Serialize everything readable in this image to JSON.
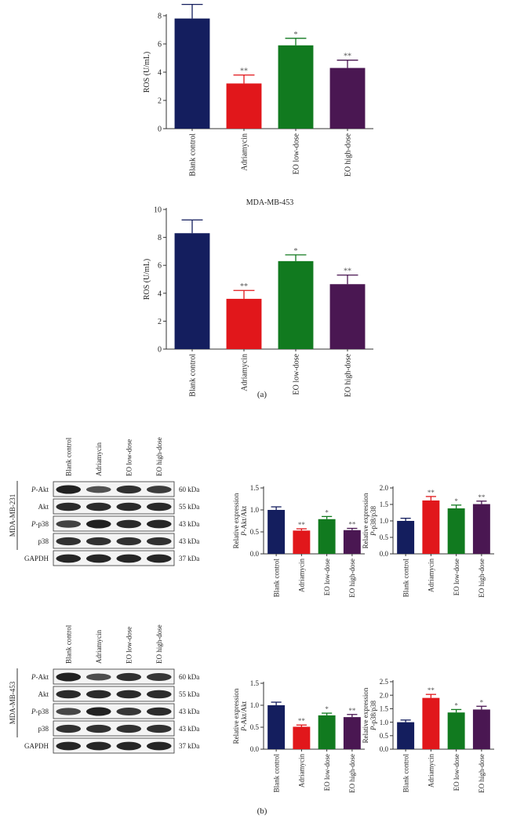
{
  "colors": {
    "blank": "#141e5e",
    "adria": "#e1171b",
    "low": "#117a1f",
    "high": "#4a1752",
    "axis": "#333333",
    "band": "#151515"
  },
  "labels": {
    "panel_a": "(a)",
    "panel_b": "(b)"
  },
  "chart_data": [
    {
      "id": "ros-top",
      "type": "bar",
      "title": "",
      "ylabel": "ROS (U/mL)",
      "ylim": [
        0,
        8
      ],
      "yticks": [
        "0",
        "2",
        "4",
        "6",
        "8"
      ],
      "categories": [
        "Blank control",
        "Adriamycin",
        "EO low-dose",
        "EO high-dose"
      ],
      "values": [
        7.8,
        3.2,
        5.9,
        4.3
      ],
      "errors": [
        1.0,
        0.6,
        0.5,
        0.55
      ],
      "significance": [
        "",
        "**",
        "*",
        "**"
      ]
    },
    {
      "id": "ros-mda453",
      "type": "bar",
      "title": "MDA-MB-453",
      "ylabel": "ROS (U/mL)",
      "ylim": [
        0,
        10
      ],
      "yticks": [
        "0",
        "2",
        "4",
        "6",
        "8",
        "10"
      ],
      "categories": [
        "Blank control",
        "Adriamycin",
        "EO low-dose",
        "EO high-dose"
      ],
      "values": [
        8.3,
        3.6,
        6.3,
        4.65
      ],
      "errors": [
        0.95,
        0.6,
        0.45,
        0.65
      ],
      "significance": [
        "",
        "**",
        "*",
        "**"
      ]
    },
    {
      "id": "akt-231",
      "type": "bar",
      "ylabel_lines": [
        "Relative expression",
        "P-Akt/Akt"
      ],
      "ylim": [
        0,
        1.5
      ],
      "yticks": [
        "0.0",
        "0.5",
        "1.0",
        "1.5"
      ],
      "categories": [
        "Blank control",
        "Adriamycin",
        "EO low-dose",
        "EO high-dose"
      ],
      "values": [
        1.0,
        0.53,
        0.79,
        0.54
      ],
      "errors": [
        0.07,
        0.04,
        0.06,
        0.04
      ],
      "significance": [
        "",
        "**",
        "*",
        "**"
      ]
    },
    {
      "id": "p38-231",
      "type": "bar",
      "ylabel_lines": [
        "Relative expression",
        "P-p38/p38"
      ],
      "ylim": [
        0,
        2.0
      ],
      "yticks": [
        "0.0",
        "0.5",
        "1.0",
        "1.5",
        "2.0"
      ],
      "categories": [
        "Blank control",
        "Adriamycin",
        "EO low-dose",
        "EO high-dose"
      ],
      "values": [
        1.0,
        1.62,
        1.38,
        1.51
      ],
      "errors": [
        0.08,
        0.12,
        0.1,
        0.09
      ],
      "significance": [
        "",
        "**",
        "*",
        "**"
      ]
    },
    {
      "id": "akt-453",
      "type": "bar",
      "ylabel_lines": [
        "Relative expression",
        "P-Akt/Akt"
      ],
      "ylim": [
        0,
        1.5
      ],
      "yticks": [
        "0.0",
        "0.5",
        "1.0",
        "1.5"
      ],
      "categories": [
        "Blank control",
        "Adriamycin",
        "EO low-dose",
        "EO high-dose"
      ],
      "values": [
        1.0,
        0.51,
        0.77,
        0.73
      ],
      "errors": [
        0.07,
        0.04,
        0.05,
        0.06
      ],
      "significance": [
        "",
        "**",
        "*",
        "**"
      ]
    },
    {
      "id": "p38-453",
      "type": "bar",
      "ylabel_lines": [
        "Relative expression",
        "P-p38/p38"
      ],
      "ylim": [
        0,
        2.5
      ],
      "yticks": [
        "0.0",
        "0.5",
        "1.0",
        "1.5",
        "2.0",
        "2.5"
      ],
      "categories": [
        "Blank control",
        "Adriamycin",
        "EO low-dose",
        "EO high-dose"
      ],
      "values": [
        1.0,
        1.9,
        1.36,
        1.47
      ],
      "errors": [
        0.08,
        0.13,
        0.11,
        0.12
      ],
      "significance": [
        "",
        "**",
        "*",
        "*"
      ]
    }
  ],
  "blots": [
    {
      "id": "blot-231",
      "cell_line": "MDA-MB-231",
      "lanes": [
        "Blank control",
        "Adriamycin",
        "EO low-dose",
        "EO high-dose"
      ],
      "rows": [
        {
          "protein": "P-Akt",
          "kda": "60 kDa",
          "intensity": [
            1.0,
            0.55,
            0.85,
            0.75
          ]
        },
        {
          "protein": "Akt",
          "kda": "55 kDa",
          "intensity": [
            0.9,
            0.9,
            0.9,
            0.9
          ]
        },
        {
          "protein": "P-p38",
          "kda": "43 kDa",
          "intensity": [
            0.7,
            1.0,
            0.9,
            0.95
          ]
        },
        {
          "protein": "p38",
          "kda": "43 kDa",
          "intensity": [
            0.85,
            0.85,
            0.85,
            0.85
          ]
        },
        {
          "protein": "GAPDH",
          "kda": "37 kDa",
          "intensity": [
            0.95,
            0.95,
            0.95,
            0.95
          ]
        }
      ]
    },
    {
      "id": "blot-453",
      "cell_line": "MDA-MB-453",
      "lanes": [
        "Blank control",
        "Adriamycin",
        "EO low-dose",
        "EO high-dose"
      ],
      "rows": [
        {
          "protein": "P-Akt",
          "kda": "60 kDa",
          "intensity": [
            1.0,
            0.6,
            0.85,
            0.8
          ]
        },
        {
          "protein": "Akt",
          "kda": "55 kDa",
          "intensity": [
            0.9,
            0.9,
            0.9,
            0.9
          ]
        },
        {
          "protein": "P-p38",
          "kda": "43 kDa",
          "intensity": [
            0.65,
            1.0,
            0.8,
            0.9
          ]
        },
        {
          "protein": "p38",
          "kda": "43 kDa",
          "intensity": [
            0.85,
            0.85,
            0.85,
            0.85
          ]
        },
        {
          "protein": "GAPDH",
          "kda": "37 kDa",
          "intensity": [
            0.95,
            0.95,
            0.95,
            0.95
          ]
        }
      ]
    }
  ]
}
